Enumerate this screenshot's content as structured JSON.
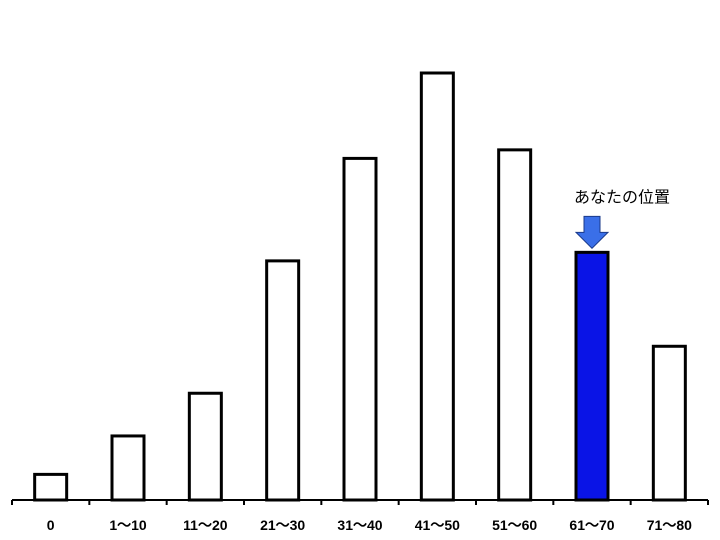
{
  "chart_data": {
    "type": "bar",
    "categories": [
      "0",
      "1〜10",
      "11〜20",
      "21〜30",
      "31〜40",
      "41〜50",
      "51〜60",
      "61〜70",
      "71〜80"
    ],
    "values": [
      6,
      15,
      25,
      56,
      80,
      100,
      82,
      58,
      36
    ],
    "ylim": [
      0,
      100
    ],
    "grid": false,
    "highlight_index": 7,
    "annotation": {
      "text": "あなたの位置",
      "target_index": 7
    },
    "colors": {
      "bar_fill": "#ffffff",
      "bar_stroke": "#000000",
      "highlight_fill": "#0a14e6",
      "arrow_fill": "#3a6fe8",
      "arrow_stroke": "#1a3a8a"
    }
  }
}
